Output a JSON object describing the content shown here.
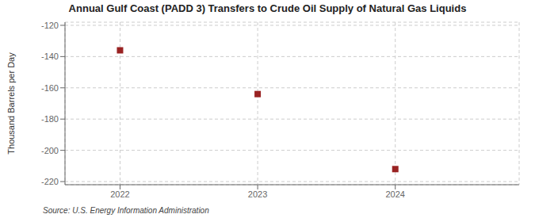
{
  "chart_data": {
    "type": "scatter",
    "title": "Annual Gulf Coast (PADD 3) Transfers to Crude Oil Supply of Natural Gas Liquids",
    "ylabel": "Thousand Barrels per Day",
    "annotations": [
      "Source: U.S. Energy Information Administration"
    ],
    "x": [
      2022,
      2023,
      2024
    ],
    "values": [
      -136,
      -164,
      -212
    ],
    "xlim": [
      2021.6,
      2024.9
    ],
    "xticks": [
      2022,
      2023,
      2024
    ],
    "ylim": [
      -222,
      -118
    ],
    "yticks": [
      -120,
      -140,
      -160,
      -180,
      -200,
      -220
    ],
    "color": "#992222",
    "marker": "square",
    "grid": true
  }
}
